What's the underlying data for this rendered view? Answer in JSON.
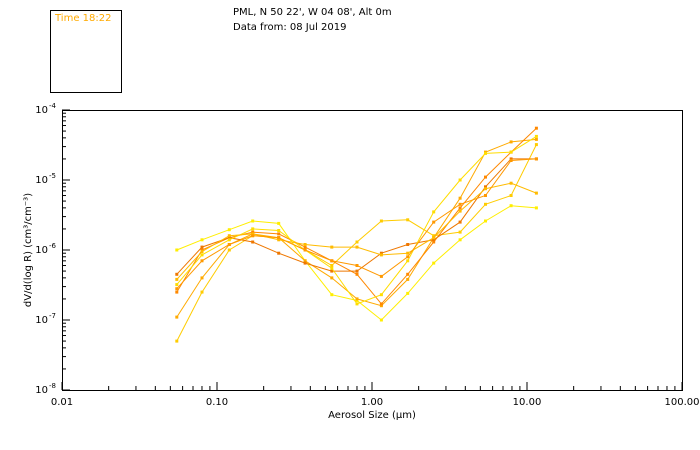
{
  "time_box": {
    "text": "Time 18:22",
    "color": "#ffaa00"
  },
  "header": {
    "line1": "PML, N 50 22', W 04 08', Alt 0m",
    "line2": "Data from: 08 Jul 2019"
  },
  "chart_data": {
    "type": "line",
    "xscale": "log",
    "yscale": "log",
    "xlim": [
      0.01,
      100
    ],
    "ylim": [
      1e-08,
      0.0001
    ],
    "xlabel": "Aerosol Size (μm)",
    "ylabel": "dV/d(log R) (cm³/cm⁻³)",
    "xticks": [
      {
        "value": 0.01,
        "label": "0.01"
      },
      {
        "value": 0.1,
        "label": "0.10"
      },
      {
        "value": 1,
        "label": "1.00"
      },
      {
        "value": 10,
        "label": "10.00"
      },
      {
        "value": 100,
        "label": "100.00"
      }
    ],
    "yticks": [
      {
        "value": 0.0001,
        "mant": "10",
        "exp": "-4"
      },
      {
        "value": 1e-05,
        "mant": "10",
        "exp": "-5"
      },
      {
        "value": 1e-06,
        "mant": "10",
        "exp": "-6"
      },
      {
        "value": 1e-07,
        "mant": "10",
        "exp": "-7"
      },
      {
        "value": 1e-08,
        "mant": "10",
        "exp": "-8"
      }
    ],
    "x": [
      0.055,
      0.08,
      0.12,
      0.17,
      0.25,
      0.37,
      0.55,
      0.8,
      1.15,
      1.7,
      2.5,
      3.7,
      5.4,
      7.9,
      11.5
    ],
    "series": [
      {
        "color": "#ffee00",
        "values": [
          1e-06,
          1.4e-06,
          1.95e-06,
          2.6e-06,
          2.4e-06,
          7e-07,
          2.3e-07,
          1.9e-07,
          1e-07,
          2.4e-07,
          6.5e-07,
          1.4e-06,
          2.6e-06,
          4.3e-06,
          4e-06
        ]
      },
      {
        "color": "#ffcc00",
        "values": [
          5e-08,
          2.5e-07,
          1e-06,
          1.6e-06,
          1.5e-06,
          1e-06,
          6e-07,
          1.3e-06,
          2.6e-06,
          2.7e-06,
          1.6e-06,
          1.8e-06,
          4.5e-06,
          6e-06,
          3.2e-05
        ]
      },
      {
        "color": "#ffaa00",
        "values": [
          1.1e-07,
          4e-07,
          1.2e-06,
          1.7e-06,
          1.5e-06,
          7e-07,
          4e-07,
          2e-07,
          1.6e-07,
          3.8e-07,
          1.5e-06,
          5.5e-06,
          2.5e-05,
          3.5e-05,
          3.8e-05
        ]
      },
      {
        "color": "#ff8800",
        "values": [
          2.5e-07,
          1e-06,
          1.5e-06,
          1.8e-06,
          1.7e-06,
          1.1e-06,
          7e-07,
          4.5e-07,
          1.7e-07,
          4.5e-07,
          1.3e-06,
          4e-06,
          1.1e-05,
          2.5e-05,
          5.5e-05
        ]
      },
      {
        "color": "#ee7700",
        "values": [
          4.5e-07,
          1.1e-06,
          1.5e-06,
          1.3e-06,
          9e-07,
          6.5e-07,
          5e-07,
          5e-07,
          9e-07,
          1.2e-06,
          1.4e-06,
          2.5e-06,
          8e-06,
          2e-05,
          2e-05
        ]
      },
      {
        "color": "#ffdd00",
        "values": [
          3.2e-07,
          8.5e-07,
          1.4e-06,
          2e-06,
          1.9e-06,
          1e-06,
          5.5e-07,
          1.7e-07,
          2.3e-07,
          7e-07,
          3.5e-06,
          1e-05,
          2.4e-05,
          2.5e-05,
          4.2e-05
        ]
      },
      {
        "color": "#ffbb00",
        "values": [
          3.8e-07,
          9.5e-07,
          1.6e-06,
          1.7e-06,
          1.4e-06,
          1.2e-06,
          1.1e-06,
          1.1e-06,
          8.5e-07,
          9e-07,
          1.5e-06,
          3.6e-06,
          7.5e-06,
          9e-06,
          6.5e-06
        ]
      },
      {
        "color": "#ff9900",
        "values": [
          2.8e-07,
          7e-07,
          1.2e-06,
          1.6e-06,
          1.5e-06,
          1e-06,
          7e-07,
          6e-07,
          4.2e-07,
          8e-07,
          2.5e-06,
          4.5e-06,
          6e-06,
          1.9e-05,
          2e-05
        ]
      }
    ]
  }
}
